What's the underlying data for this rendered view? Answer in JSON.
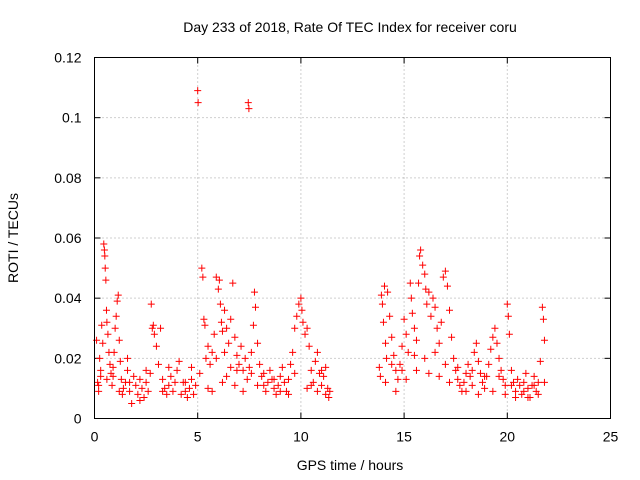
{
  "chart_data": {
    "type": "scatter",
    "title": "Day 233 of 2018, Rate Of TEC Index for receiver coru",
    "xlabel": "GPS time / hours",
    "ylabel": "ROTI / TECUs",
    "xlim": [
      0,
      25
    ],
    "ylim": [
      0,
      0.12
    ],
    "xticks": [
      0,
      5,
      10,
      15,
      20,
      25
    ],
    "xtick_labels": [
      "0",
      "5",
      "10",
      "15",
      "20",
      "25"
    ],
    "yticks": [
      0,
      0.02,
      0.04,
      0.06,
      0.08,
      0.1,
      0.12
    ],
    "ytick_labels": [
      "0",
      "0.02",
      "0.04",
      "0.06",
      "0.08",
      "0.1",
      "0.12"
    ],
    "grid": true,
    "marker": "plus",
    "color": "#ff0000",
    "series": [
      {
        "points": [
          [
            0.1,
            0.026
          ],
          [
            0.15,
            0.012
          ],
          [
            0.2,
            0.009
          ],
          [
            0.25,
            0.02
          ],
          [
            0.3,
            0.014
          ],
          [
            0.35,
            0.031
          ],
          [
            0.4,
            0.025
          ],
          [
            0.45,
            0.058
          ],
          [
            0.48,
            0.056
          ],
          [
            0.5,
            0.054
          ],
          [
            0.52,
            0.05
          ],
          [
            0.55,
            0.046
          ],
          [
            0.58,
            0.036
          ],
          [
            0.6,
            0.032
          ],
          [
            0.65,
            0.028
          ],
          [
            0.7,
            0.022
          ],
          [
            0.75,
            0.018
          ],
          [
            0.8,
            0.015
          ],
          [
            0.85,
            0.011
          ],
          [
            0.9,
            0.017
          ],
          [
            0.95,
            0.022
          ],
          [
            1.0,
            0.03
          ],
          [
            1.05,
            0.034
          ],
          [
            1.1,
            0.039
          ],
          [
            1.15,
            0.041
          ],
          [
            1.2,
            0.026
          ],
          [
            1.25,
            0.019
          ],
          [
            1.3,
            0.013
          ],
          [
            1.35,
            0.008
          ],
          [
            1.4,
            0.01
          ],
          [
            1.5,
            0.012
          ],
          [
            1.6,
            0.016
          ],
          [
            1.7,
            0.009
          ],
          [
            1.8,
            0.005
          ],
          [
            1.9,
            0.014
          ],
          [
            2.0,
            0.011
          ],
          [
            2.1,
            0.008
          ],
          [
            2.2,
            0.013
          ],
          [
            2.3,
            0.01
          ],
          [
            2.4,
            0.007
          ],
          [
            2.5,
            0.012
          ],
          [
            2.6,
            0.009
          ],
          [
            2.7,
            0.015
          ],
          [
            2.75,
            0.038
          ],
          [
            2.8,
            0.03
          ],
          [
            2.85,
            0.031
          ],
          [
            2.9,
            0.028
          ],
          [
            3.0,
            0.024
          ],
          [
            3.1,
            0.018
          ],
          [
            3.2,
            0.03
          ],
          [
            3.3,
            0.013
          ],
          [
            3.4,
            0.01
          ],
          [
            3.5,
            0.008
          ],
          [
            3.6,
            0.011
          ],
          [
            3.7,
            0.014
          ],
          [
            3.8,
            0.009
          ],
          [
            3.9,
            0.012
          ],
          [
            4.0,
            0.016
          ],
          [
            4.1,
            0.019
          ],
          [
            4.2,
            0.008
          ],
          [
            4.3,
            0.012
          ],
          [
            4.4,
            0.009
          ],
          [
            4.5,
            0.007
          ],
          [
            4.6,
            0.01
          ],
          [
            4.7,
            0.013
          ],
          [
            4.8,
            0.008
          ],
          [
            4.9,
            0.011
          ],
          [
            5.0,
            0.109
          ],
          [
            5.02,
            0.105
          ],
          [
            5.1,
            0.015
          ],
          [
            5.2,
            0.05
          ],
          [
            5.25,
            0.047
          ],
          [
            5.3,
            0.033
          ],
          [
            5.35,
            0.031
          ],
          [
            5.4,
            0.02
          ],
          [
            5.5,
            0.024
          ],
          [
            5.6,
            0.018
          ],
          [
            5.7,
            0.022
          ],
          [
            5.8,
            0.028
          ],
          [
            5.9,
            0.047
          ],
          [
            6.0,
            0.043
          ],
          [
            6.05,
            0.046
          ],
          [
            6.1,
            0.038
          ],
          [
            6.15,
            0.032
          ],
          [
            6.2,
            0.029
          ],
          [
            6.3,
            0.036
          ],
          [
            6.4,
            0.03
          ],
          [
            6.5,
            0.025
          ],
          [
            6.6,
            0.033
          ],
          [
            6.7,
            0.045
          ],
          [
            6.8,
            0.027
          ],
          [
            6.9,
            0.021
          ],
          [
            7.0,
            0.018
          ],
          [
            7.1,
            0.024
          ],
          [
            7.2,
            0.016
          ],
          [
            7.3,
            0.02
          ],
          [
            7.4,
            0.013
          ],
          [
            7.45,
            0.105
          ],
          [
            7.48,
            0.103
          ],
          [
            7.5,
            0.017
          ],
          [
            7.6,
            0.022
          ],
          [
            7.7,
            0.031
          ],
          [
            7.75,
            0.042
          ],
          [
            7.8,
            0.037
          ],
          [
            7.9,
            0.025
          ],
          [
            8.0,
            0.018
          ],
          [
            8.1,
            0.014
          ],
          [
            8.2,
            0.011
          ],
          [
            8.3,
            0.009
          ],
          [
            8.4,
            0.012
          ],
          [
            8.5,
            0.016
          ],
          [
            8.6,
            0.013
          ],
          [
            8.7,
            0.01
          ],
          [
            8.8,
            0.008
          ],
          [
            8.9,
            0.011
          ],
          [
            9.0,
            0.014
          ],
          [
            9.1,
            0.017
          ],
          [
            9.2,
            0.012
          ],
          [
            9.3,
            0.009
          ],
          [
            9.4,
            0.013
          ],
          [
            9.5,
            0.018
          ],
          [
            9.6,
            0.022
          ],
          [
            9.7,
            0.03
          ],
          [
            9.8,
            0.034
          ],
          [
            9.9,
            0.038
          ],
          [
            10.0,
            0.04
          ],
          [
            10.05,
            0.036
          ],
          [
            10.1,
            0.032
          ],
          [
            10.2,
            0.028
          ],
          [
            10.3,
            0.03
          ],
          [
            10.4,
            0.024
          ],
          [
            10.5,
            0.016
          ],
          [
            10.6,
            0.012
          ],
          [
            10.7,
            0.019
          ],
          [
            10.8,
            0.022
          ],
          [
            10.9,
            0.015
          ],
          [
            11.0,
            0.011
          ],
          [
            11.1,
            0.014
          ],
          [
            11.2,
            0.017
          ],
          [
            11.3,
            0.01
          ],
          [
            11.35,
            0.007
          ],
          [
            11.4,
            0.009
          ],
          [
            0.2,
            0.011
          ],
          [
            0.6,
            0.013
          ],
          [
            1.2,
            0.009
          ],
          [
            1.7,
            0.012
          ],
          [
            2.2,
            0.006
          ],
          [
            3.3,
            0.009
          ],
          [
            4.4,
            0.012
          ],
          [
            5.5,
            0.01
          ],
          [
            5.7,
            0.009
          ],
          [
            6.2,
            0.012
          ],
          [
            6.4,
            0.014
          ],
          [
            6.6,
            0.017
          ],
          [
            6.8,
            0.011
          ],
          [
            7.2,
            0.009
          ],
          [
            7.9,
            0.011
          ],
          [
            8.7,
            0.013
          ],
          [
            9.4,
            0.008
          ],
          [
            10.3,
            0.01
          ],
          [
            10.8,
            0.009
          ],
          [
            11.2,
            0.008
          ],
          [
            0.3,
            0.016
          ],
          [
            0.9,
            0.014
          ],
          [
            1.6,
            0.02
          ],
          [
            2.5,
            0.016
          ],
          [
            3.6,
            0.017
          ],
          [
            4.7,
            0.017
          ],
          [
            5.9,
            0.02
          ],
          [
            6.3,
            0.022
          ],
          [
            6.9,
            0.016
          ],
          [
            7.6,
            0.015
          ],
          [
            8.2,
            0.015
          ],
          [
            9.0,
            0.009
          ],
          [
            9.7,
            0.015
          ],
          [
            10.5,
            0.011
          ],
          [
            11.0,
            0.016
          ],
          [
            13.8,
            0.017
          ],
          [
            13.85,
            0.014
          ],
          [
            13.9,
            0.041
          ],
          [
            13.95,
            0.038
          ],
          [
            14.0,
            0.032
          ],
          [
            14.05,
            0.044
          ],
          [
            14.1,
            0.025
          ],
          [
            14.15,
            0.02
          ],
          [
            14.2,
            0.042
          ],
          [
            14.3,
            0.034
          ],
          [
            14.4,
            0.027
          ],
          [
            14.5,
            0.021
          ],
          [
            14.6,
            0.016
          ],
          [
            14.7,
            0.013
          ],
          [
            14.8,
            0.018
          ],
          [
            14.9,
            0.024
          ],
          [
            15.0,
            0.033
          ],
          [
            15.1,
            0.028
          ],
          [
            15.2,
            0.022
          ],
          [
            15.3,
            0.045
          ],
          [
            15.35,
            0.04
          ],
          [
            15.4,
            0.035
          ],
          [
            15.5,
            0.03
          ],
          [
            15.6,
            0.026
          ],
          [
            15.7,
            0.045
          ],
          [
            15.75,
            0.054
          ],
          [
            15.8,
            0.056
          ],
          [
            15.9,
            0.051
          ],
          [
            16.0,
            0.048
          ],
          [
            16.05,
            0.043
          ],
          [
            16.1,
            0.038
          ],
          [
            16.2,
            0.042
          ],
          [
            16.3,
            0.034
          ],
          [
            16.4,
            0.04
          ],
          [
            16.5,
            0.037
          ],
          [
            16.6,
            0.03
          ],
          [
            16.7,
            0.025
          ],
          [
            16.8,
            0.032
          ],
          [
            16.9,
            0.047
          ],
          [
            17.0,
            0.049
          ],
          [
            17.1,
            0.044
          ],
          [
            17.2,
            0.036
          ],
          [
            17.3,
            0.027
          ],
          [
            17.4,
            0.02
          ],
          [
            17.5,
            0.016
          ],
          [
            17.6,
            0.013
          ],
          [
            17.7,
            0.011
          ],
          [
            17.8,
            0.009
          ],
          [
            17.9,
            0.012
          ],
          [
            18.0,
            0.015
          ],
          [
            18.1,
            0.018
          ],
          [
            18.2,
            0.014
          ],
          [
            18.3,
            0.011
          ],
          [
            18.4,
            0.022
          ],
          [
            18.5,
            0.025
          ],
          [
            18.6,
            0.019
          ],
          [
            18.7,
            0.015
          ],
          [
            18.8,
            0.012
          ],
          [
            18.9,
            0.01
          ],
          [
            19.0,
            0.014
          ],
          [
            19.1,
            0.018
          ],
          [
            19.2,
            0.023
          ],
          [
            19.3,
            0.027
          ],
          [
            19.4,
            0.03
          ],
          [
            19.5,
            0.025
          ],
          [
            19.6,
            0.02
          ],
          [
            19.7,
            0.016
          ],
          [
            19.8,
            0.013
          ],
          [
            19.9,
            0.011
          ],
          [
            20.0,
            0.038
          ],
          [
            20.05,
            0.034
          ],
          [
            20.1,
            0.028
          ],
          [
            20.2,
            0.016
          ],
          [
            20.3,
            0.012
          ],
          [
            20.4,
            0.009
          ],
          [
            20.5,
            0.013
          ],
          [
            20.6,
            0.011
          ],
          [
            20.7,
            0.008
          ],
          [
            20.8,
            0.012
          ],
          [
            20.9,
            0.015
          ],
          [
            21.0,
            0.01
          ],
          [
            21.1,
            0.007
          ],
          [
            21.2,
            0.011
          ],
          [
            21.3,
            0.014
          ],
          [
            21.4,
            0.009
          ],
          [
            21.5,
            0.012
          ],
          [
            21.6,
            0.019
          ],
          [
            21.7,
            0.037
          ],
          [
            21.75,
            0.033
          ],
          [
            21.8,
            0.026
          ],
          [
            14.1,
            0.012
          ],
          [
            14.6,
            0.009
          ],
          [
            15.1,
            0.013
          ],
          [
            15.6,
            0.016
          ],
          [
            16.2,
            0.015
          ],
          [
            16.7,
            0.014
          ],
          [
            17.2,
            0.012
          ],
          [
            18.0,
            0.009
          ],
          [
            18.6,
            0.008
          ],
          [
            19.3,
            0.009
          ],
          [
            19.9,
            0.008
          ],
          [
            20.4,
            0.007
          ],
          [
            21.0,
            0.007
          ],
          [
            21.5,
            0.008
          ],
          [
            14.4,
            0.018
          ],
          [
            14.9,
            0.016
          ],
          [
            15.5,
            0.021
          ],
          [
            16.0,
            0.02
          ],
          [
            16.5,
            0.022
          ],
          [
            17.0,
            0.018
          ],
          [
            17.6,
            0.017
          ],
          [
            18.3,
            0.016
          ],
          [
            18.9,
            0.014
          ],
          [
            19.6,
            0.014
          ],
          [
            20.2,
            0.011
          ],
          [
            20.8,
            0.009
          ],
          [
            21.3,
            0.011
          ],
          [
            21.8,
            0.012
          ]
        ]
      }
    ]
  }
}
